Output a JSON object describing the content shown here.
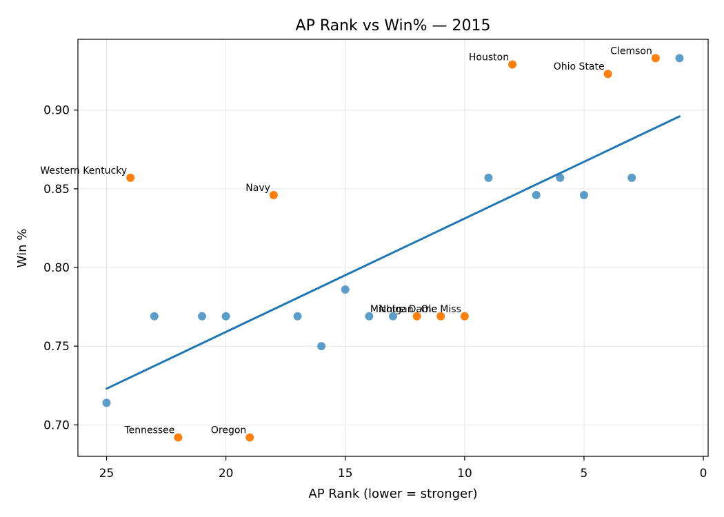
{
  "chart_data": {
    "type": "scatter",
    "title": "AP Rank vs Win% — 2015",
    "xlabel": "AP Rank (lower = stronger)",
    "ylabel": "Win %",
    "xlim": [
      26.2,
      -0.2
    ],
    "ylim": [
      0.68,
      0.945
    ],
    "x_inverted": true,
    "x_ticks": [
      25,
      20,
      15,
      10,
      5,
      0
    ],
    "y_ticks": [
      0.7,
      0.75,
      0.8,
      0.85,
      0.9
    ],
    "y_tick_labels": [
      "0.70",
      "0.75",
      "0.80",
      "0.85",
      "0.90"
    ],
    "grid": true,
    "colors": {
      "base": "#1f77b4",
      "highlight": "#ff7f0e",
      "trend": "#1f77b4"
    },
    "trendline": {
      "x": [
        25,
        1
      ],
      "y": [
        0.723,
        0.896
      ]
    },
    "points": [
      {
        "x": 1,
        "y": 0.933,
        "group": "base"
      },
      {
        "x": 2,
        "y": 0.933,
        "group": "highlight",
        "label": "Clemson"
      },
      {
        "x": 3,
        "y": 0.857,
        "group": "base"
      },
      {
        "x": 4,
        "y": 0.923,
        "group": "highlight",
        "label": "Ohio State"
      },
      {
        "x": 5,
        "y": 0.846,
        "group": "base"
      },
      {
        "x": 6,
        "y": 0.857,
        "group": "base"
      },
      {
        "x": 7,
        "y": 0.846,
        "group": "base"
      },
      {
        "x": 8,
        "y": 0.929,
        "group": "highlight",
        "label": "Houston"
      },
      {
        "x": 9,
        "y": 0.857,
        "group": "base"
      },
      {
        "x": 10,
        "y": 0.769,
        "group": "highlight",
        "label": "Ole Miss"
      },
      {
        "x": 11,
        "y": 0.769,
        "group": "highlight",
        "label": "Notre Dame"
      },
      {
        "x": 12,
        "y": 0.769,
        "group": "highlight",
        "label": "Michigan"
      },
      {
        "x": 13,
        "y": 0.769,
        "group": "base"
      },
      {
        "x": 14,
        "y": 0.769,
        "group": "base"
      },
      {
        "x": 15,
        "y": 0.786,
        "group": "base"
      },
      {
        "x": 16,
        "y": 0.75,
        "group": "base"
      },
      {
        "x": 17,
        "y": 0.769,
        "group": "base"
      },
      {
        "x": 18,
        "y": 0.846,
        "group": "highlight",
        "label": "Navy"
      },
      {
        "x": 19,
        "y": 0.692,
        "group": "highlight",
        "label": "Oregon"
      },
      {
        "x": 20,
        "y": 0.769,
        "group": "base"
      },
      {
        "x": 21,
        "y": 0.769,
        "group": "base"
      },
      {
        "x": 22,
        "y": 0.692,
        "group": "highlight",
        "label": "Tennessee"
      },
      {
        "x": 23,
        "y": 0.769,
        "group": "base"
      },
      {
        "x": 24,
        "y": 0.857,
        "group": "highlight",
        "label": "Western Kentucky"
      },
      {
        "x": 25,
        "y": 0.714,
        "group": "base"
      }
    ]
  }
}
